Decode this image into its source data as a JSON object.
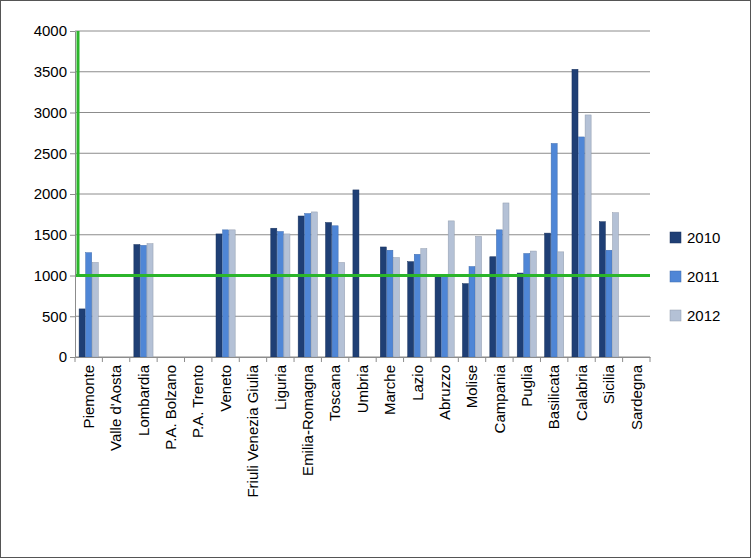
{
  "chart_data": {
    "type": "bar",
    "categories": [
      "Piemonte",
      "Valle d'Aosta",
      "Lombardia",
      "P.A. Bolzano",
      "P.A. Trento",
      "Veneto",
      "Friuli Venezia Giulia",
      "Liguria",
      "Emilia-Romagna",
      "Toscana",
      "Umbria",
      "Marche",
      "Lazio",
      "Abruzzo",
      "Molise",
      "Campania",
      "Puglia",
      "Basilicata",
      "Calabria",
      "Sicilia",
      "Sardegna"
    ],
    "series": [
      {
        "name": "2010",
        "color": "#1f3f75",
        "values": [
          590,
          null,
          1380,
          null,
          null,
          1510,
          null,
          1580,
          1730,
          1650,
          2050,
          1350,
          1170,
          1010,
          900,
          1230,
          1030,
          1520,
          3530,
          1660,
          null
        ]
      },
      {
        "name": "2011",
        "color": "#4f86d6",
        "values": [
          1280,
          null,
          1370,
          null,
          null,
          1560,
          null,
          1540,
          1760,
          1610,
          null,
          1310,
          1260,
          1010,
          1110,
          1560,
          1270,
          2620,
          2700,
          1310,
          null
        ]
      },
      {
        "name": "2012",
        "color": "#b4c1d6",
        "values": [
          1160,
          null,
          1390,
          null,
          null,
          1560,
          null,
          1510,
          1780,
          1160,
          null,
          1220,
          1330,
          1670,
          1480,
          1890,
          1300,
          1290,
          2970,
          1770,
          null
        ]
      }
    ],
    "ylim": [
      0,
      4000
    ],
    "yticks": [
      0,
      500,
      1000,
      1500,
      2000,
      2500,
      3000,
      3500,
      4000
    ],
    "grid": true,
    "legend": "right",
    "threshold": 1000
  }
}
